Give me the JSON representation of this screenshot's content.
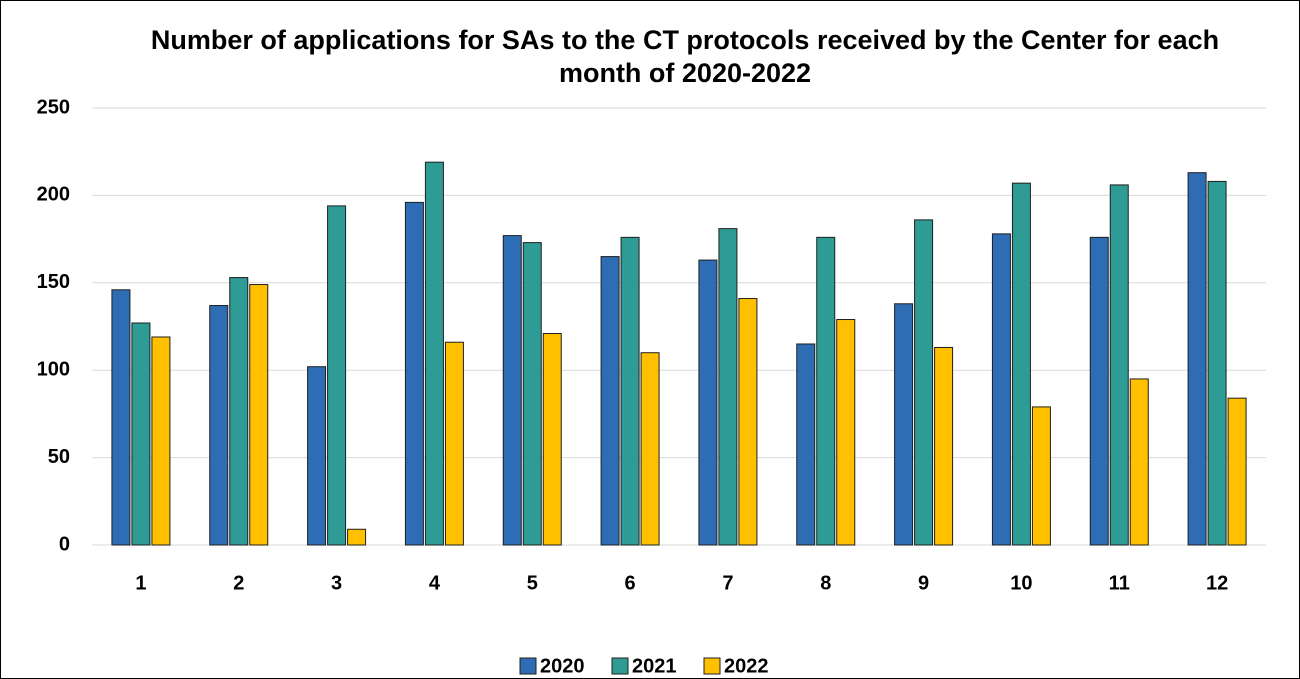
{
  "chart_data": {
    "type": "bar",
    "title": "Number of applications for SAs to the CT protocols received by the Center for each month of 2020-2022",
    "categories": [
      "1",
      "2",
      "3",
      "4",
      "5",
      "6",
      "7",
      "8",
      "9",
      "10",
      "11",
      "12"
    ],
    "series": [
      {
        "name": "2020",
        "color": "#2e6db4",
        "values": [
          146,
          137,
          102,
          196,
          177,
          165,
          163,
          115,
          138,
          178,
          176,
          213
        ]
      },
      {
        "name": "2021",
        "color": "#2e9c94",
        "values": [
          127,
          153,
          194,
          219,
          173,
          176,
          181,
          176,
          186,
          207,
          206,
          208
        ]
      },
      {
        "name": "2022",
        "color": "#ffc000",
        "values": [
          119,
          149,
          9,
          116,
          121,
          110,
          141,
          129,
          113,
          79,
          95,
          84
        ]
      }
    ],
    "ylim": [
      0,
      250
    ],
    "yticks": [
      0,
      50,
      100,
      150,
      200,
      250
    ],
    "grid": true,
    "legend": "bottom"
  }
}
